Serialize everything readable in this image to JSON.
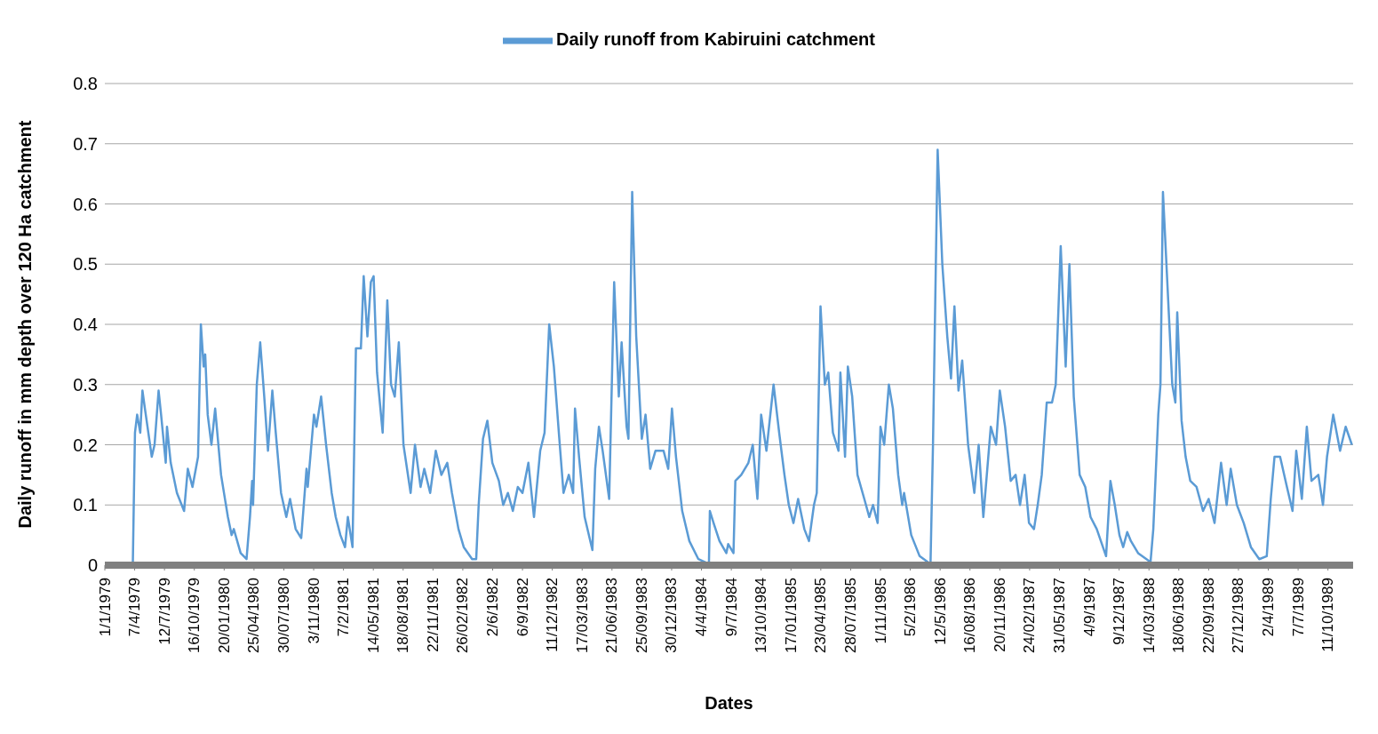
{
  "chart_data": {
    "type": "line",
    "xlabel": "Dates",
    "ylabel": "Daily runoff in mm depth over 120 Ha catchment",
    "x": [
      "1979-01-01",
      "1979-04-01",
      "1979-04-05",
      "1979-04-08",
      "1979-04-15",
      "1979-04-25",
      "1979-05-02",
      "1979-05-10",
      "1979-06-01",
      "1979-06-10",
      "1979-06-23",
      "1979-07-01",
      "1979-07-16",
      "1979-07-20",
      "1979-08-01",
      "1979-08-21",
      "1979-09-13",
      "1979-09-25",
      "1979-10-10",
      "1979-10-28",
      "1979-11-06",
      "1979-11-15",
      "1979-11-20",
      "1979-11-28",
      "1979-12-10",
      "1979-12-22",
      "1980-01-10",
      "1980-02-01",
      "1980-02-13",
      "1980-02-20",
      "1980-03-13",
      "1980-04-01",
      "1980-04-12",
      "1980-04-19",
      "1980-04-22",
      "1980-05-04",
      "1980-05-15",
      "1980-05-28",
      "1980-06-09",
      "1980-06-23",
      "1980-07-04",
      "1980-07-21",
      "1980-08-07",
      "1980-08-19",
      "1980-09-06",
      "1980-09-24",
      "1980-10-11",
      "1980-10-15",
      "1980-11-04",
      "1980-11-12",
      "1980-11-27",
      "1980-12-13",
      "1980-12-31",
      "1981-01-13",
      "1981-01-28",
      "1981-02-12",
      "1981-02-21",
      "1981-03-08",
      "1981-03-19",
      "1981-04-04",
      "1981-04-13",
      "1981-04-25",
      "1981-05-06",
      "1981-05-15",
      "1981-05-26",
      "1981-06-13",
      "1981-06-28",
      "1981-07-10",
      "1981-07-22",
      "1981-08-04",
      "1981-08-19",
      "1981-09-11",
      "1981-09-25",
      "1981-10-13",
      "1981-10-25",
      "1981-11-13",
      "1981-12-01",
      "1981-12-19",
      "1982-01-07",
      "1982-01-22",
      "1982-02-12",
      "1982-03-01",
      "1982-03-28",
      "1982-04-10",
      "1982-04-18",
      "1982-05-02",
      "1982-05-16",
      "1982-06-01",
      "1982-06-22",
      "1982-07-06",
      "1982-07-21",
      "1982-08-06",
      "1982-08-22",
      "1982-09-06",
      "1982-09-25",
      "1982-10-13",
      "1982-11-02",
      "1982-11-16",
      "1982-12-01",
      "1982-12-16",
      "1983-01-01",
      "1983-01-16",
      "1983-02-02",
      "1983-02-16",
      "1983-02-22",
      "1983-03-07",
      "1983-03-25",
      "1983-04-19",
      "1983-04-28",
      "1983-05-10",
      "1983-05-22",
      "1983-06-12",
      "1983-06-28",
      "1983-07-13",
      "1983-07-22",
      "1983-08-07",
      "1983-08-13",
      "1983-08-25",
      "1983-09-07",
      "1983-09-25",
      "1983-10-07",
      "1983-10-22",
      "1983-11-08",
      "1983-12-04",
      "1983-12-19",
      "1983-12-31",
      "1984-01-13",
      "1984-02-02",
      "1984-02-25",
      "1984-03-25",
      "1984-04-28",
      "1984-05-01",
      "1984-05-13",
      "1984-06-01",
      "1984-06-23",
      "1984-06-29",
      "1984-07-16",
      "1984-07-22",
      "1984-08-10",
      "1984-09-02",
      "1984-09-16",
      "1984-10-01",
      "1984-10-13",
      "1984-10-30",
      "1984-11-22",
      "1984-12-10",
      "1984-12-27",
      "1985-01-10",
      "1985-01-25",
      "1985-02-09",
      "1985-03-01",
      "1985-03-16",
      "1985-04-01",
      "1985-04-10",
      "1985-04-22",
      "1985-05-06",
      "1985-05-17",
      "1985-06-01",
      "1985-06-19",
      "1985-06-25",
      "1985-07-10",
      "1985-07-19",
      "1985-08-02",
      "1985-08-19",
      "1985-09-10",
      "1985-09-26",
      "1985-10-08",
      "1985-10-23",
      "1985-11-01",
      "1985-11-13",
      "1985-11-28",
      "1985-12-11",
      "1985-12-28",
      "1986-01-10",
      "1986-01-16",
      "1986-02-08",
      "1986-03-07",
      "1986-04-11",
      "1986-04-19",
      "1986-05-04",
      "1986-05-19",
      "1986-06-04",
      "1986-06-16",
      "1986-06-27",
      "1986-07-10",
      "1986-07-22",
      "1986-08-10",
      "1986-08-30",
      "1986-09-13",
      "1986-09-28",
      "1986-10-22",
      "1986-11-08",
      "1986-11-20",
      "1986-12-07",
      "1986-12-25",
      "1987-01-10",
      "1987-01-24",
      "1987-02-08",
      "1987-02-22",
      "1987-03-10",
      "1987-03-22",
      "1987-04-04",
      "1987-04-20",
      "1987-05-07",
      "1987-05-19",
      "1987-06-04",
      "1987-06-20",
      "1987-07-02",
      "1987-07-16",
      "1987-08-04",
      "1987-08-22",
      "1987-09-08",
      "1987-09-28",
      "1987-10-28",
      "1987-11-11",
      "1987-11-25",
      "1987-12-10",
      "1987-12-22",
      "1988-01-04",
      "1988-01-16",
      "1988-02-08",
      "1988-03-19",
      "1988-03-28",
      "1988-04-13",
      "1988-04-20",
      "1988-04-28",
      "1988-05-13",
      "1988-05-28",
      "1988-06-07",
      "1988-06-13",
      "1988-06-27",
      "1988-07-10",
      "1988-07-25",
      "1988-08-14",
      "1988-09-04",
      "1988-09-22",
      "1988-10-11",
      "1988-11-01",
      "1988-11-19",
      "1988-12-02",
      "1988-12-22",
      "1989-01-13",
      "1989-02-05",
      "1989-03-04",
      "1989-03-28",
      "1989-04-10",
      "1989-04-22",
      "1989-05-10",
      "1989-06-01",
      "1989-06-19",
      "1989-07-01",
      "1989-07-19",
      "1989-08-04",
      "1989-08-19",
      "1989-09-10",
      "1989-09-25",
      "1989-10-08",
      "1989-10-28",
      "1989-11-19",
      "1989-12-07",
      "1989-12-27"
    ],
    "series": [
      {
        "name": "Daily runoff from Kabiruini catchment",
        "color": "#5b9bd5",
        "values": [
          0,
          0,
          0.13,
          0.22,
          0.25,
          0.22,
          0.29,
          0.26,
          0.18,
          0.2,
          0.29,
          0.25,
          0.17,
          0.23,
          0.17,
          0.12,
          0.09,
          0.16,
          0.13,
          0.18,
          0.4,
          0.33,
          0.35,
          0.25,
          0.2,
          0.26,
          0.15,
          0.08,
          0.05,
          0.06,
          0.02,
          0.01,
          0.08,
          0.14,
          0.1,
          0.3,
          0.37,
          0.28,
          0.19,
          0.29,
          0.22,
          0.12,
          0.08,
          0.11,
          0.06,
          0.045,
          0.16,
          0.13,
          0.25,
          0.23,
          0.28,
          0.2,
          0.12,
          0.08,
          0.05,
          0.03,
          0.08,
          0.03,
          0.36,
          0.36,
          0.48,
          0.38,
          0.47,
          0.48,
          0.32,
          0.22,
          0.44,
          0.3,
          0.28,
          0.37,
          0.2,
          0.12,
          0.2,
          0.13,
          0.16,
          0.12,
          0.19,
          0.15,
          0.17,
          0.12,
          0.06,
          0.03,
          0.01,
          0.01,
          0.1,
          0.21,
          0.24,
          0.17,
          0.14,
          0.1,
          0.12,
          0.09,
          0.13,
          0.12,
          0.17,
          0.08,
          0.19,
          0.22,
          0.4,
          0.33,
          0.22,
          0.12,
          0.15,
          0.12,
          0.26,
          0.18,
          0.08,
          0.025,
          0.16,
          0.23,
          0.19,
          0.11,
          0.47,
          0.28,
          0.37,
          0.23,
          0.21,
          0.62,
          0.38,
          0.21,
          0.25,
          0.16,
          0.19,
          0.19,
          0.16,
          0.26,
          0.18,
          0.09,
          0.04,
          0.01,
          0.002,
          0.09,
          0.07,
          0.04,
          0.02,
          0.035,
          0.02,
          0.14,
          0.15,
          0.17,
          0.2,
          0.11,
          0.25,
          0.19,
          0.3,
          0.22,
          0.15,
          0.1,
          0.07,
          0.11,
          0.06,
          0.04,
          0.1,
          0.12,
          0.43,
          0.3,
          0.32,
          0.22,
          0.19,
          0.32,
          0.18,
          0.33,
          0.28,
          0.15,
          0.11,
          0.08,
          0.1,
          0.07,
          0.23,
          0.2,
          0.3,
          0.26,
          0.15,
          0.1,
          0.12,
          0.05,
          0.015,
          0.002,
          0.2,
          0.69,
          0.5,
          0.38,
          0.31,
          0.43,
          0.29,
          0.34,
          0.2,
          0.12,
          0.2,
          0.08,
          0.23,
          0.2,
          0.29,
          0.23,
          0.14,
          0.15,
          0.1,
          0.15,
          0.07,
          0.06,
          0.1,
          0.15,
          0.27,
          0.27,
          0.3,
          0.53,
          0.33,
          0.5,
          0.28,
          0.15,
          0.13,
          0.08,
          0.06,
          0.015,
          0.14,
          0.1,
          0.05,
          0.03,
          0.055,
          0.04,
          0.02,
          0.005,
          0.06,
          0.25,
          0.3,
          0.62,
          0.46,
          0.3,
          0.27,
          0.42,
          0.24,
          0.18,
          0.14,
          0.13,
          0.09,
          0.11,
          0.07,
          0.17,
          0.1,
          0.16,
          0.1,
          0.07,
          0.03,
          0.01,
          0.015,
          0.11,
          0.18,
          0.18,
          0.13,
          0.09,
          0.19,
          0.11,
          0.23,
          0.14,
          0.15,
          0.1,
          0.18,
          0.25,
          0.19,
          0.23,
          0.2
        ]
      }
    ],
    "xlim": [
      "1979-01-01",
      "1989-12-31"
    ],
    "xticks": [
      {
        "value": "1979-01-01",
        "label": "1/1/1979"
      },
      {
        "value": "1979-04-07",
        "label": "7/4/1979"
      },
      {
        "value": "1979-07-12",
        "label": "12/7/1979"
      },
      {
        "value": "1979-10-16",
        "label": "16/10/1979"
      },
      {
        "value": "1980-01-20",
        "label": "20/01/1980"
      },
      {
        "value": "1980-04-25",
        "label": "25/04/1980"
      },
      {
        "value": "1980-07-30",
        "label": "30/07/1980"
      },
      {
        "value": "1980-11-03",
        "label": "3/11/1980"
      },
      {
        "value": "1981-02-07",
        "label": "7/2/1981"
      },
      {
        "value": "1981-05-14",
        "label": "14/05/1981"
      },
      {
        "value": "1981-08-18",
        "label": "18/08/1981"
      },
      {
        "value": "1981-11-22",
        "label": "22/11/1981"
      },
      {
        "value": "1982-02-26",
        "label": "26/02/1982"
      },
      {
        "value": "1982-06-02",
        "label": "2/6/1982"
      },
      {
        "value": "1982-09-06",
        "label": "6/9/1982"
      },
      {
        "value": "1982-12-11",
        "label": "11/12/1982"
      },
      {
        "value": "1983-03-17",
        "label": "17/03/1983"
      },
      {
        "value": "1983-06-21",
        "label": "21/06/1983"
      },
      {
        "value": "1983-09-25",
        "label": "25/09/1983"
      },
      {
        "value": "1983-12-30",
        "label": "30/12/1983"
      },
      {
        "value": "1984-04-04",
        "label": "4/4/1984"
      },
      {
        "value": "1984-07-09",
        "label": "9/7/1984"
      },
      {
        "value": "1984-10-13",
        "label": "13/10/1984"
      },
      {
        "value": "1985-01-17",
        "label": "17/01/1985"
      },
      {
        "value": "1985-04-23",
        "label": "23/04/1985"
      },
      {
        "value": "1985-07-28",
        "label": "28/07/1985"
      },
      {
        "value": "1985-11-01",
        "label": "1/11/1985"
      },
      {
        "value": "1986-02-05",
        "label": "5/2/1986"
      },
      {
        "value": "1986-05-12",
        "label": "12/5/1986"
      },
      {
        "value": "1986-08-16",
        "label": "16/08/1986"
      },
      {
        "value": "1986-11-20",
        "label": "20/11/1986"
      },
      {
        "value": "1987-02-24",
        "label": "24/02/1987"
      },
      {
        "value": "1987-05-31",
        "label": "31/05/1987"
      },
      {
        "value": "1987-09-04",
        "label": "4/9/1987"
      },
      {
        "value": "1987-12-09",
        "label": "9/12/1987"
      },
      {
        "value": "1988-03-14",
        "label": "14/03/1988"
      },
      {
        "value": "1988-06-18",
        "label": "18/06/1988"
      },
      {
        "value": "1988-09-22",
        "label": "22/09/1988"
      },
      {
        "value": "1988-12-27",
        "label": "27/12/1988"
      },
      {
        "value": "1989-04-02",
        "label": "2/4/1989"
      },
      {
        "value": "1989-07-07",
        "label": "7/7/1989"
      },
      {
        "value": "1989-10-11",
        "label": "11/10/1989"
      }
    ],
    "ylim": [
      0,
      0.8
    ],
    "yticks": [
      0,
      0.1,
      0.2,
      0.3,
      0.4,
      0.5,
      0.6,
      0.7,
      0.8
    ],
    "grid": "y",
    "legend": "top",
    "marker": "none",
    "line_style": "solid"
  }
}
